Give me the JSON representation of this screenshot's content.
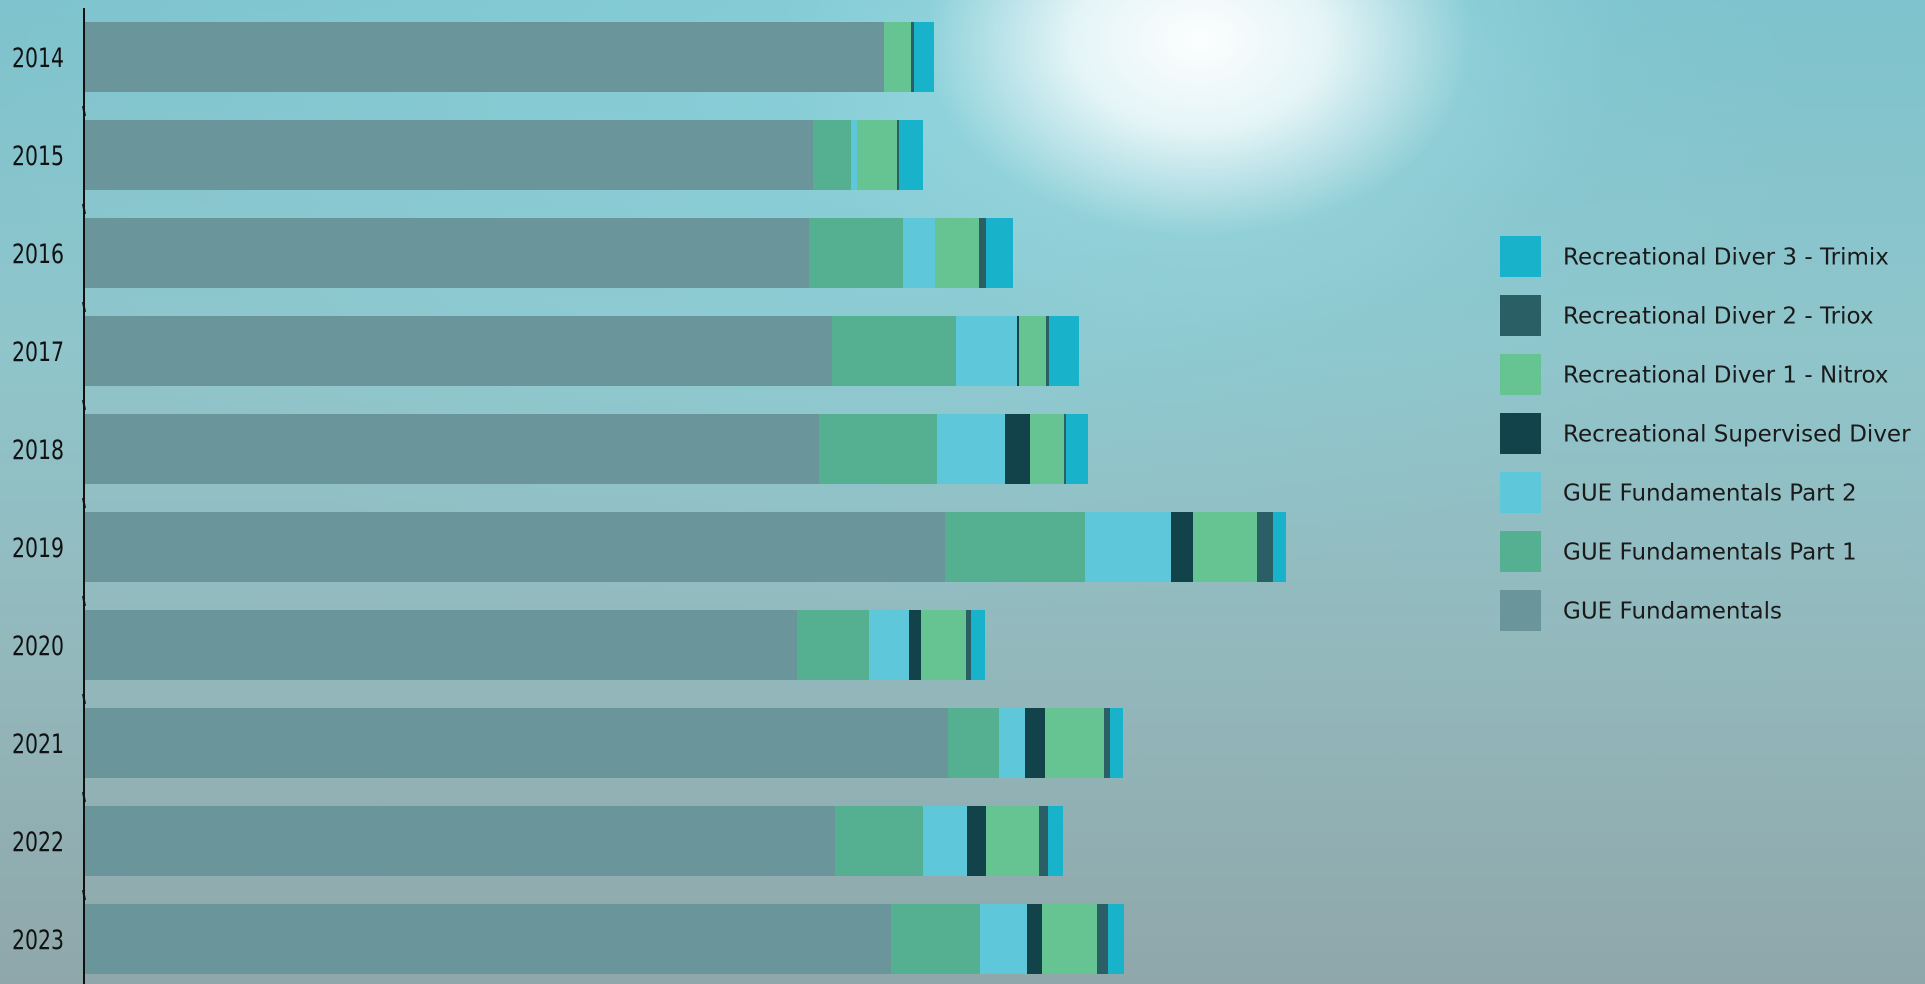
{
  "chart_data": {
    "type": "bar",
    "orientation": "horizontal",
    "stacked": true,
    "categories": [
      "2014",
      "2015",
      "2016",
      "2017",
      "2018",
      "2019",
      "2020",
      "2021",
      "2022",
      "2023"
    ],
    "series": [
      {
        "name": "GUE Fundamentals",
        "color": "#6a959a",
        "values": [
          800,
          729,
          725,
          748,
          735,
          861,
          713,
          864,
          751,
          807
        ]
      },
      {
        "name": "GUE Fundamentals Part 1",
        "color": "#55b092",
        "values": [
          0,
          38,
          94,
          124,
          118,
          140,
          72,
          51,
          88,
          89
        ]
      },
      {
        "name": "GUE Fundamentals Part 2",
        "color": "#5ec7da",
        "values": [
          0,
          6,
          32,
          61,
          68,
          86,
          40,
          26,
          44,
          47
        ]
      },
      {
        "name": "Recreational Supervised Diver",
        "color": "#12424a",
        "values": [
          0,
          0,
          0,
          2,
          25,
          22,
          12,
          20,
          19,
          15
        ]
      },
      {
        "name": "Recreational Diver 1 - Nitrox",
        "color": "#66c493",
        "values": [
          27,
          40,
          44,
          27,
          34,
          64,
          45,
          59,
          53,
          55
        ]
      },
      {
        "name": "Recreational Diver 2 - Triox",
        "color": "#2a5f66",
        "values": [
          3,
          2,
          7,
          3,
          2,
          16,
          5,
          6,
          9,
          11
        ]
      },
      {
        "name": "Recreational Diver 3 - Trimix",
        "color": "#18b3cb",
        "values": [
          20,
          24,
          27,
          30,
          22,
          13,
          14,
          13,
          15,
          16
        ]
      }
    ],
    "legend_order": [
      "Recreational Diver 3 - Trimix",
      "Recreational Diver 2 - Triox",
      "Recreational Diver 1 - Nitrox",
      "Recreational Supervised Diver",
      "GUE Fundamentals Part 2",
      "GUE Fundamentals Part 1",
      "GUE Fundamentals"
    ],
    "legend_position": "right",
    "xlim": [
      0,
      1250
    ],
    "xaxis_visible": false,
    "grid": false
  }
}
